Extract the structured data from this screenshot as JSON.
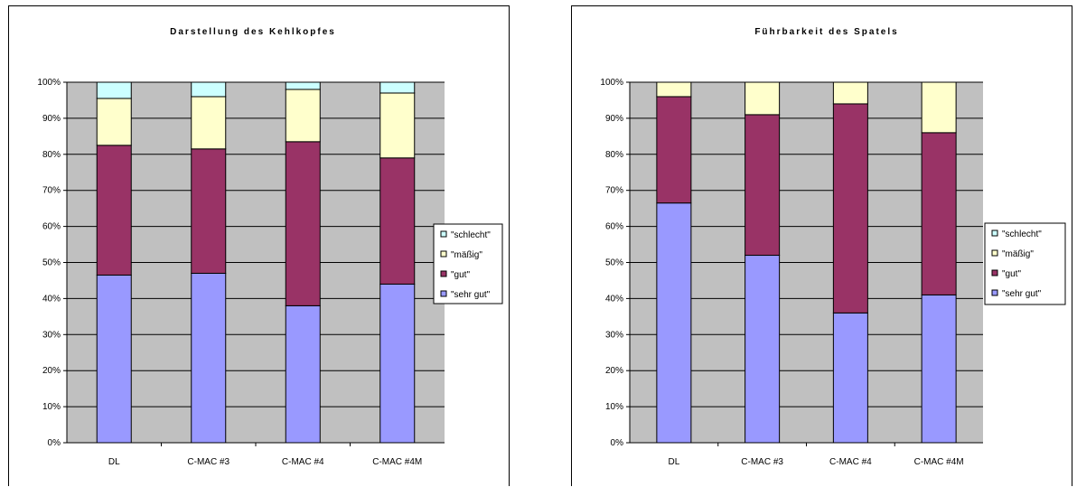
{
  "chart_data": [
    {
      "type": "bar",
      "stacked": true,
      "percent": true,
      "title": "Darstellung des Kehlkopfes",
      "categories": [
        "DL",
        "C-MAC #3",
        "C-MAC #4",
        "C-MAC #4M"
      ],
      "y_ticks": [
        "0%",
        "10%",
        "20%",
        "30%",
        "40%",
        "50%",
        "60%",
        "70%",
        "80%",
        "90%",
        "100%"
      ],
      "ylim": [
        0,
        100
      ],
      "grid": true,
      "legend_position": "right",
      "series": [
        {
          "name": "\"sehr gut\"",
          "color": "#9999FF",
          "values": [
            46.5,
            47,
            38,
            44
          ]
        },
        {
          "name": "\"gut\"",
          "color": "#993366",
          "values": [
            36,
            34.5,
            45.5,
            35
          ]
        },
        {
          "name": "\"mäßig\"",
          "color": "#FFFFCC",
          "values": [
            13,
            14.5,
            14.5,
            18
          ]
        },
        {
          "name": "\"schlecht\"",
          "color": "#CCFFFF",
          "values": [
            4.5,
            4,
            2,
            3
          ]
        }
      ]
    },
    {
      "type": "bar",
      "stacked": true,
      "percent": true,
      "title": "Führbarkeit des Spatels",
      "categories": [
        "DL",
        "C-MAC #3",
        "C-MAC #4",
        "C-MAC #4M"
      ],
      "y_ticks": [
        "0%",
        "10%",
        "20%",
        "30%",
        "40%",
        "50%",
        "60%",
        "70%",
        "80%",
        "90%",
        "100%"
      ],
      "ylim": [
        0,
        100
      ],
      "grid": true,
      "legend_position": "right",
      "series": [
        {
          "name": "\"sehr gut\"",
          "color": "#9999FF",
          "values": [
            66.5,
            52,
            36,
            41
          ]
        },
        {
          "name": "\"gut\"",
          "color": "#993366",
          "values": [
            29.5,
            39,
            58,
            45
          ]
        },
        {
          "name": "\"mäßig\"",
          "color": "#FFFFCC",
          "values": [
            4,
            9,
            6,
            14
          ]
        },
        {
          "name": "\"schlecht\"",
          "color": "#CCFFFF",
          "values": [
            0,
            0,
            0,
            0
          ]
        }
      ]
    }
  ],
  "styles": {
    "plot_background": "#C0C0C0",
    "grid_color": "#000000",
    "bar_outline": "#000000"
  }
}
